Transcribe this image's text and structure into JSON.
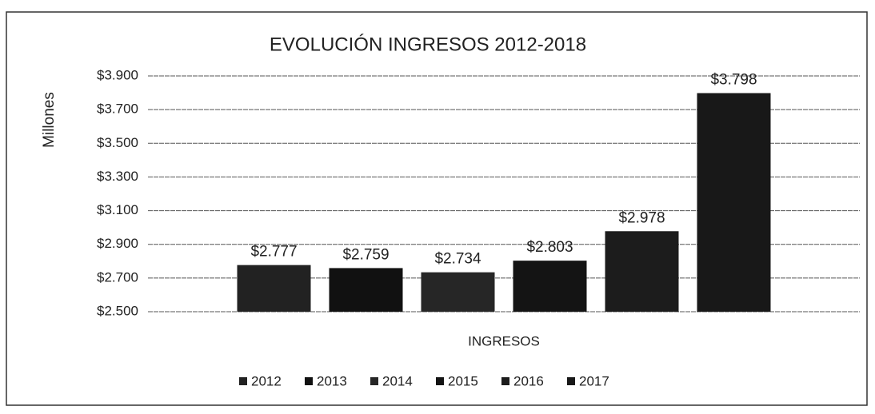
{
  "chart_data": {
    "type": "bar",
    "title": "EVOLUCIÓN INGRESOS 2012-2018",
    "y_label": "Millones",
    "categories": [
      "INGRESOS"
    ],
    "series": [
      {
        "name": "2012",
        "color": "#222222",
        "values": [
          2777
        ],
        "value_labels": [
          "$2.777"
        ]
      },
      {
        "name": "2013",
        "color": "#111111",
        "values": [
          2759
        ],
        "value_labels": [
          "$2.759"
        ]
      },
      {
        "name": "2014",
        "color": "#262626",
        "values": [
          2734
        ],
        "value_labels": [
          "$2.734"
        ]
      },
      {
        "name": "2015",
        "color": "#141414",
        "values": [
          2803
        ],
        "value_labels": [
          "$2.803"
        ]
      },
      {
        "name": "2016",
        "color": "#1c1c1c",
        "values": [
          2978
        ],
        "value_labels": [
          "$2.978"
        ]
      },
      {
        "name": "2017",
        "color": "#181818",
        "values": [
          3798
        ],
        "value_labels": [
          "$3.798"
        ]
      }
    ],
    "ylim": [
      2500,
      3900
    ],
    "yticks": [
      {
        "value": 2500,
        "label": "$2.500"
      },
      {
        "value": 2700,
        "label": "$2.700"
      },
      {
        "value": 2900,
        "label": "$2.900"
      },
      {
        "value": 3100,
        "label": "$3.100"
      },
      {
        "value": 3300,
        "label": "$3.300"
      },
      {
        "value": 3500,
        "label": "$3.500"
      },
      {
        "value": 3700,
        "label": "$3.700"
      },
      {
        "value": 3900,
        "label": "$3.900"
      }
    ],
    "grid": true
  }
}
